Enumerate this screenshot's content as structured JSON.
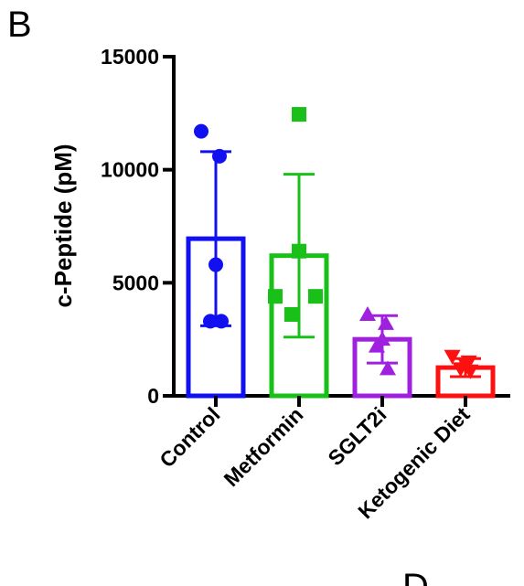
{
  "panel_label": "B",
  "next_panel_label": "D",
  "chart_data": {
    "type": "bar",
    "ylabel": "c-Peptide (pM)",
    "xlabel": "",
    "ylim": [
      0,
      15000
    ],
    "yticks": [
      0,
      5000,
      10000,
      15000
    ],
    "ytick_labels": [
      "0",
      "5000",
      "10000",
      "15000"
    ],
    "categories": [
      "Control",
      "Metformin",
      "SGLT2i",
      "Ketogenic Diet"
    ],
    "colors": [
      "#1010f0",
      "#18c018",
      "#a020e0",
      "#ff1010"
    ],
    "markers": [
      "circle",
      "square",
      "triangle-up",
      "triangle-down"
    ],
    "values": [
      6950,
      6200,
      2500,
      1250
    ],
    "sd": [
      3850,
      3600,
      1050,
      400
    ],
    "points": [
      [
        11700,
        10600,
        5800,
        3300,
        3300
      ],
      [
        12450,
        6400,
        4400,
        4400,
        3600
      ],
      [
        3600,
        3200,
        2500,
        2200,
        1200
      ],
      [
        1750,
        1500,
        1400,
        1200,
        1100
      ]
    ],
    "grid": false,
    "legend": "none"
  }
}
